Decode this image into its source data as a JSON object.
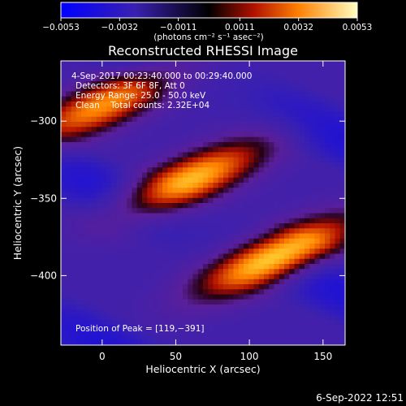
{
  "chart_data": {
    "type": "heatmap",
    "title": "Reconstructed RHESSI Image",
    "xlabel": "Heliocentric X (arcsec)",
    "ylabel": "Heliocentric Y (arcsec)",
    "xlim": [
      -28,
      165
    ],
    "ylim": [
      -445,
      -261
    ],
    "x_ticks": [
      {
        "value": 0,
        "label": "0"
      },
      {
        "value": 50,
        "label": "50"
      },
      {
        "value": 100,
        "label": "100"
      },
      {
        "value": 150,
        "label": "150"
      }
    ],
    "y_ticks": [
      {
        "value": -300,
        "label": "−300"
      },
      {
        "value": -350,
        "label": "−350"
      },
      {
        "value": -400,
        "label": "−400"
      }
    ],
    "colorbar": {
      "range": [
        -0.0053,
        0.0053
      ],
      "ticks": [
        {
          "value": -0.0053,
          "label": "−0.0053"
        },
        {
          "value": -0.0032,
          "label": "−0.0032"
        },
        {
          "value": -0.0011,
          "label": "−0.0011"
        },
        {
          "value": 0.0011,
          "label": "0.0011"
        },
        {
          "value": 0.0032,
          "label": "0.0032"
        },
        {
          "value": 0.0053,
          "label": "0.0053"
        }
      ],
      "unit_label": "(photons cm⁻² s⁻¹ asec⁻²)"
    },
    "annotations": [
      "4-Sep-2017 00:23:40.000 to 00:29:40.000",
      "Detectors: 3F 6F 8F, Att 0",
      "Energy Range: 25.0 - 50.0 keV",
      "Clean    Total counts: 2.32E+04"
    ],
    "peak_label": "Position of Peak = [119,−391]",
    "peak": {
      "x": 119,
      "y": -391
    },
    "bright_bands": [
      {
        "x_center": 118,
        "y_center": -388,
        "angle_deg": 22,
        "amplitude": 0.0053
      },
      {
        "x_center": 60,
        "y_center": -338,
        "angle_deg": 22,
        "amplitude": 0.0045
      },
      {
        "x_center": 0,
        "y_center": -290,
        "angle_deg": 22,
        "amplitude": 0.004
      }
    ],
    "grid": false
  },
  "footer": {
    "timestamp": "6-Sep-2022 12:51"
  }
}
